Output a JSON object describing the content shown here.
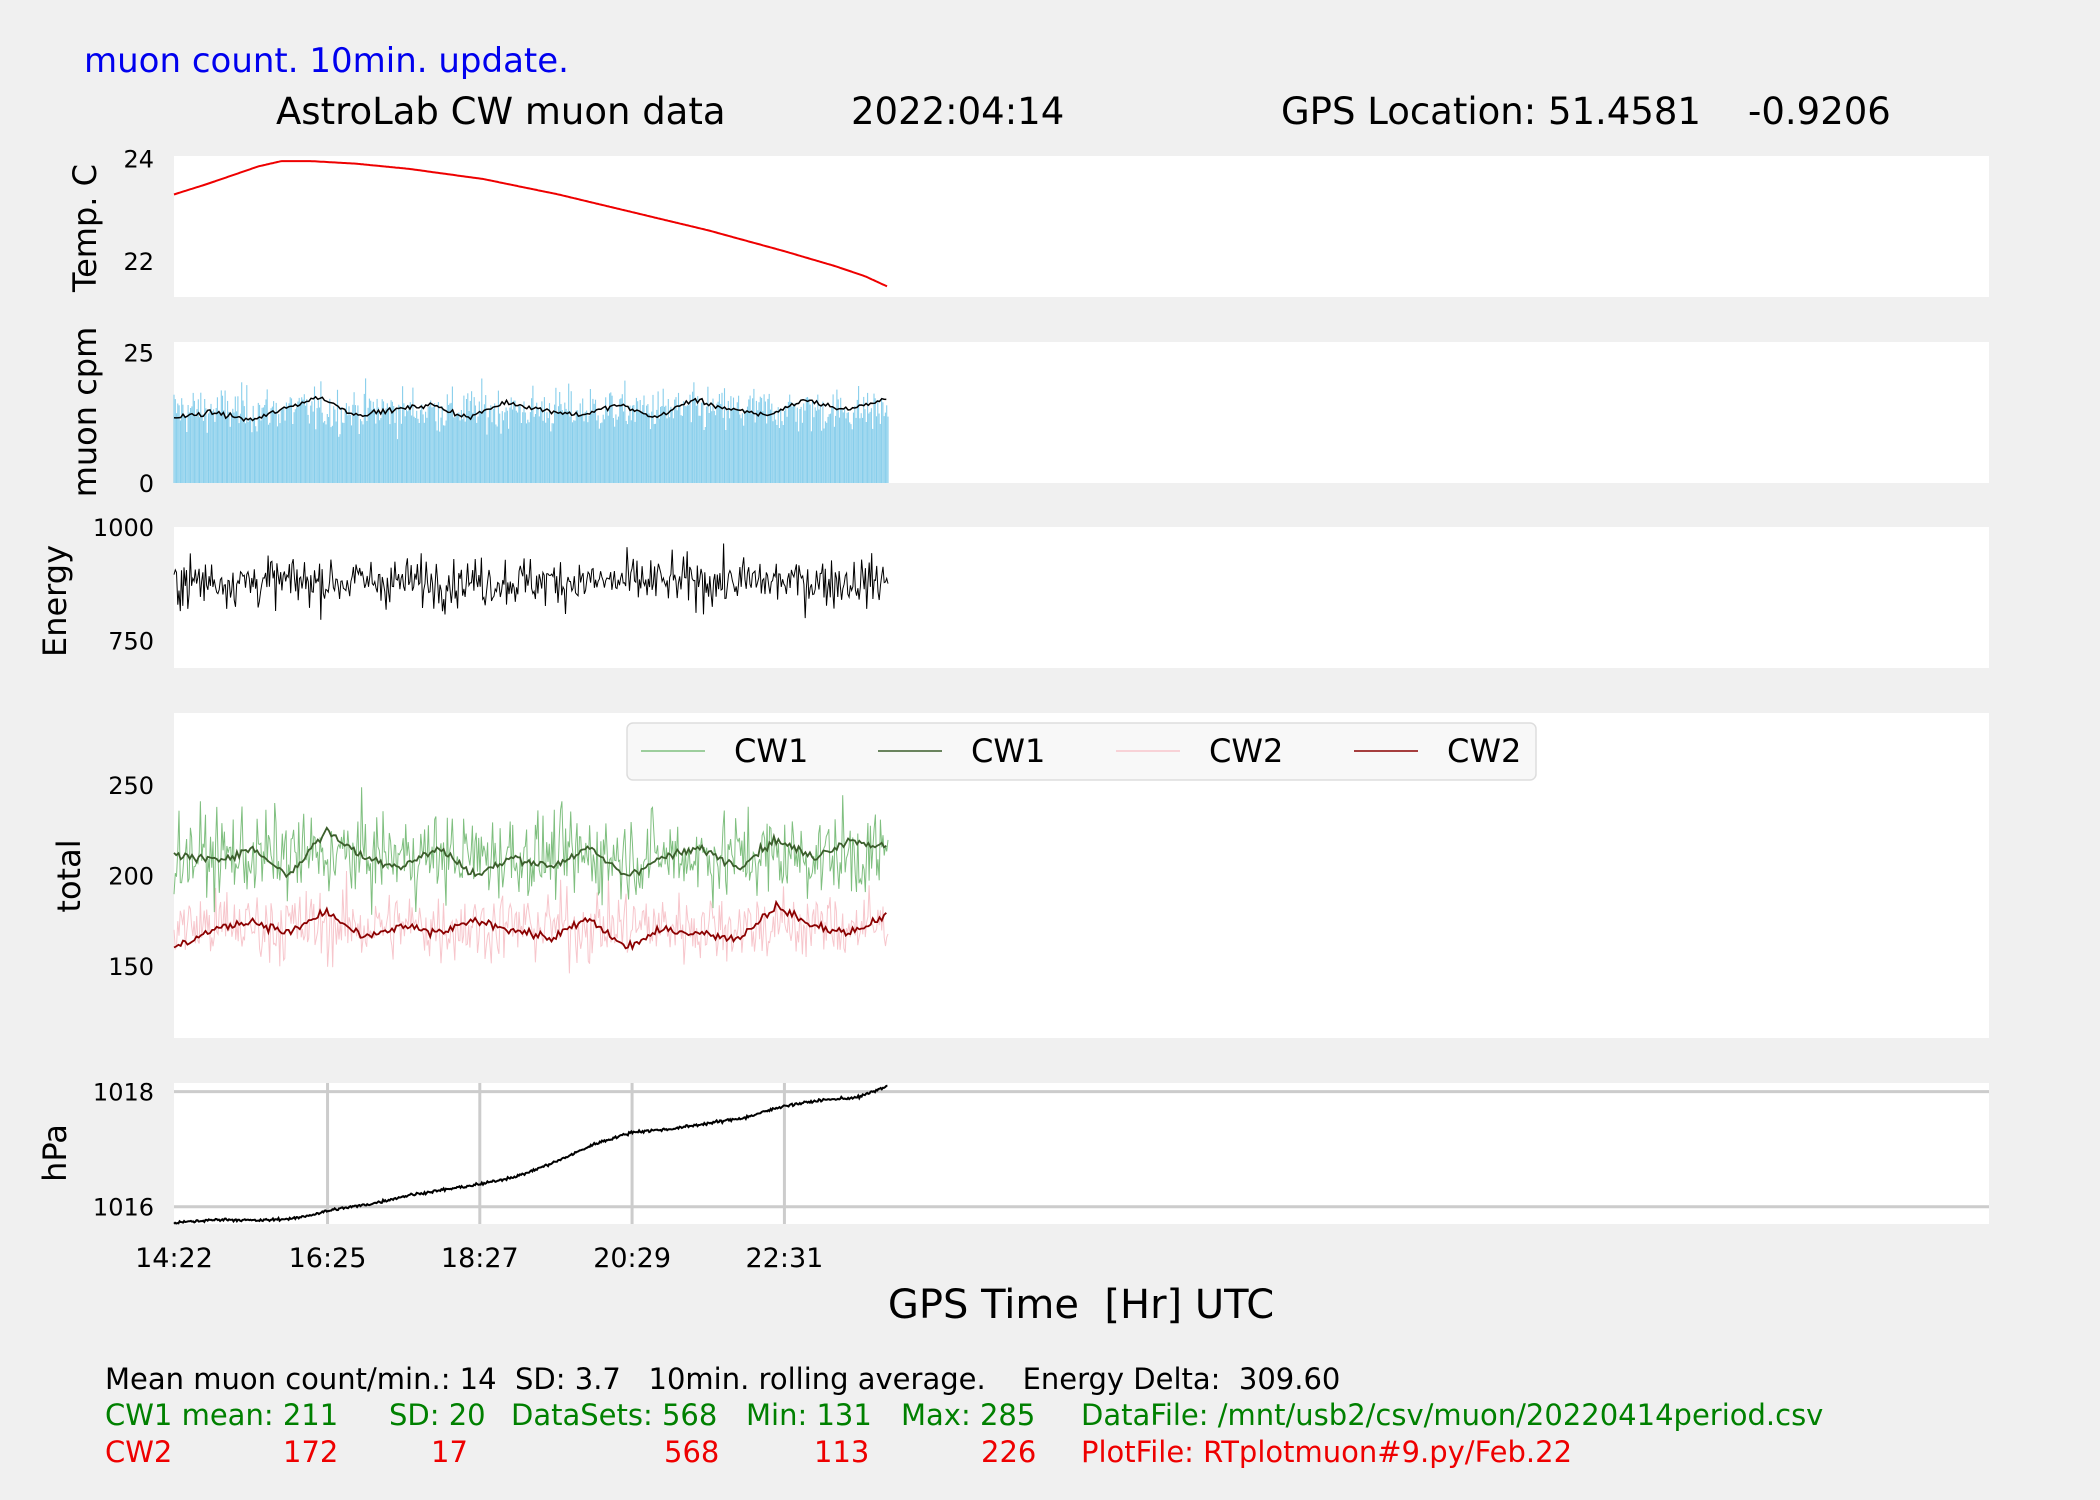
{
  "header": {
    "update_note": "muon count.  10min. update.",
    "title": "AstroLab CW muon data",
    "date": "2022:04:14",
    "gps_location": "GPS Location: 51.4581    -0.9206"
  },
  "colors": {
    "background": "#f0f0f0",
    "panel": "#ffffff",
    "temp": "#ee0000",
    "muon_bars": "#87ceeb",
    "avg": "#000000",
    "cw1_raw": "#7fbf7f",
    "cw1_avg": "#3b5e2b",
    "cw2_raw": "#f7c6cc",
    "cw2_avg": "#8b0000",
    "note_blue": "#0000ee",
    "stats_green": "#008000",
    "stats_red": "#ee0000"
  },
  "chart_data": {
    "type": "line",
    "xlabel": "GPS Time  [Hr] UTC",
    "x_ticks": [
      "14:22",
      "16:25",
      "18:27",
      "20:29",
      "22:31"
    ],
    "x_tick_hours": [
      14.367,
      16.417,
      18.45,
      20.483,
      22.517
    ],
    "x_range": [
      14.367,
      38.6
    ],
    "data_end_hour": 23.9,
    "panels": [
      {
        "id": "temperature",
        "type": "line",
        "ylabel": "Temp. C",
        "y_ticks": [
          24,
          22
        ],
        "ylim": [
          21.3,
          24.05
        ],
        "series": [
          {
            "values_at": [
              14.367,
              14.8,
              15.2,
              15.5,
              15.8,
              16.2,
              16.8,
              17.5,
              18.5,
              19.5,
              20.5,
              21.5,
              22.5,
              23.2,
              23.6,
              23.9
            ],
            "values": [
              23.3,
              23.5,
              23.7,
              23.85,
              23.95,
              23.95,
              23.9,
              23.8,
              23.6,
              23.3,
              22.95,
              22.6,
              22.2,
              21.9,
              21.7,
              21.5
            ]
          }
        ]
      },
      {
        "id": "muon_cpm",
        "type": "bar+line",
        "ylabel": "muon cpm",
        "y_ticks": [
          25,
          0
        ],
        "ylim": [
          0,
          27
        ],
        "mean_level": 14,
        "avg_points_at": [
          14.367,
          14.9,
          15.4,
          15.9,
          16.3,
          16.8,
          17.3,
          17.8,
          18.3,
          18.8,
          19.3,
          19.8,
          20.3,
          20.8,
          21.3,
          21.8,
          22.3,
          22.8,
          23.3,
          23.9
        ],
        "avg_points": [
          12.5,
          13.5,
          12,
          14.5,
          16.5,
          13,
          14,
          15,
          12.5,
          15.5,
          14,
          13,
          15,
          12.5,
          16,
          14,
          13,
          16,
          14,
          16
        ]
      },
      {
        "id": "energy",
        "type": "line",
        "ylabel": "Energy",
        "y_ticks": [
          1000,
          750
        ],
        "ylim": [
          690,
          1000
        ],
        "mean_level": 880,
        "range": [
          700,
          1000
        ]
      },
      {
        "id": "total",
        "type": "line",
        "ylabel": "total",
        "y_ticks": [
          250,
          200,
          150
        ],
        "ylim": [
          110,
          290
        ],
        "legend": {
          "placement": "top-center",
          "entries": [
            "CW1",
            "CW1",
            "CW2",
            "CW2"
          ]
        },
        "series": [
          {
            "mean": 211,
            "sd": 20,
            "min": 131,
            "max": 285
          },
          {
            "avg_points_at": [
              14.367,
              14.9,
              15.4,
              15.9,
              16.4,
              16.9,
              17.4,
              17.9,
              18.4,
              18.9,
              19.4,
              19.9,
              20.4,
              20.9,
              21.4,
              21.9,
              22.4,
              22.9,
              23.4,
              23.9
            ],
            "avg_points": [
              212,
              208,
              215,
              200,
              225,
              210,
              205,
              215,
              200,
              210,
              205,
              215,
              200,
              210,
              215,
              205,
              220,
              210,
              220,
              215
            ]
          },
          {
            "mean": 172,
            "sd": 17,
            "min": 113,
            "max": 226
          },
          {
            "avg_points_at": [
              14.367,
              14.9,
              15.4,
              15.9,
              16.4,
              16.9,
              17.4,
              17.9,
              18.4,
              18.9,
              19.4,
              19.9,
              20.4,
              20.9,
              21.4,
              21.9,
              22.4,
              22.9,
              23.4,
              23.9
            ],
            "avg_points": [
              160,
              170,
              175,
              168,
              180,
              165,
              172,
              168,
              175,
              170,
              165,
              176,
              160,
              170,
              168,
              165,
              183,
              172,
              168,
              178
            ]
          }
        ]
      },
      {
        "id": "pressure",
        "type": "line",
        "ylabel": "hPa",
        "y_ticks": [
          1018,
          1016
        ],
        "ylim": [
          1015.7,
          1018.15
        ],
        "grid": true,
        "series": [
          {
            "values_at": [
              14.367,
              15.0,
              15.5,
              16.0,
              16.5,
              17.0,
              17.5,
              18.0,
              18.5,
              19.0,
              19.5,
              20.0,
              20.5,
              21.0,
              21.5,
              22.0,
              22.5,
              23.0,
              23.5,
              23.9
            ],
            "values": [
              1015.72,
              1015.78,
              1015.76,
              1015.8,
              1015.95,
              1016.05,
              1016.2,
              1016.3,
              1016.4,
              1016.55,
              1016.8,
              1017.1,
              1017.3,
              1017.35,
              1017.45,
              1017.55,
              1017.75,
              1017.85,
              1017.9,
              1018.1
            ]
          }
        ]
      }
    ]
  },
  "footer": {
    "line1": "Mean muon count/min.: 14  SD: 3.7   10min. rolling average.    Energy Delta:  309.60",
    "cw1": {
      "label": "CW1 mean: 211",
      "sd": "SD: 20",
      "datasets": "DataSets: 568",
      "min": "Min: 131",
      "max": "Max: 285",
      "file": "DataFile: /mnt/usb2/csv/muon/20220414period.csv"
    },
    "cw2": {
      "label": "CW2",
      "mean": "172",
      "sd": "17",
      "datasets": "568",
      "min": "113",
      "max": "226",
      "file": "PlotFile: RTplotmuon#9.py/Feb.22"
    }
  }
}
